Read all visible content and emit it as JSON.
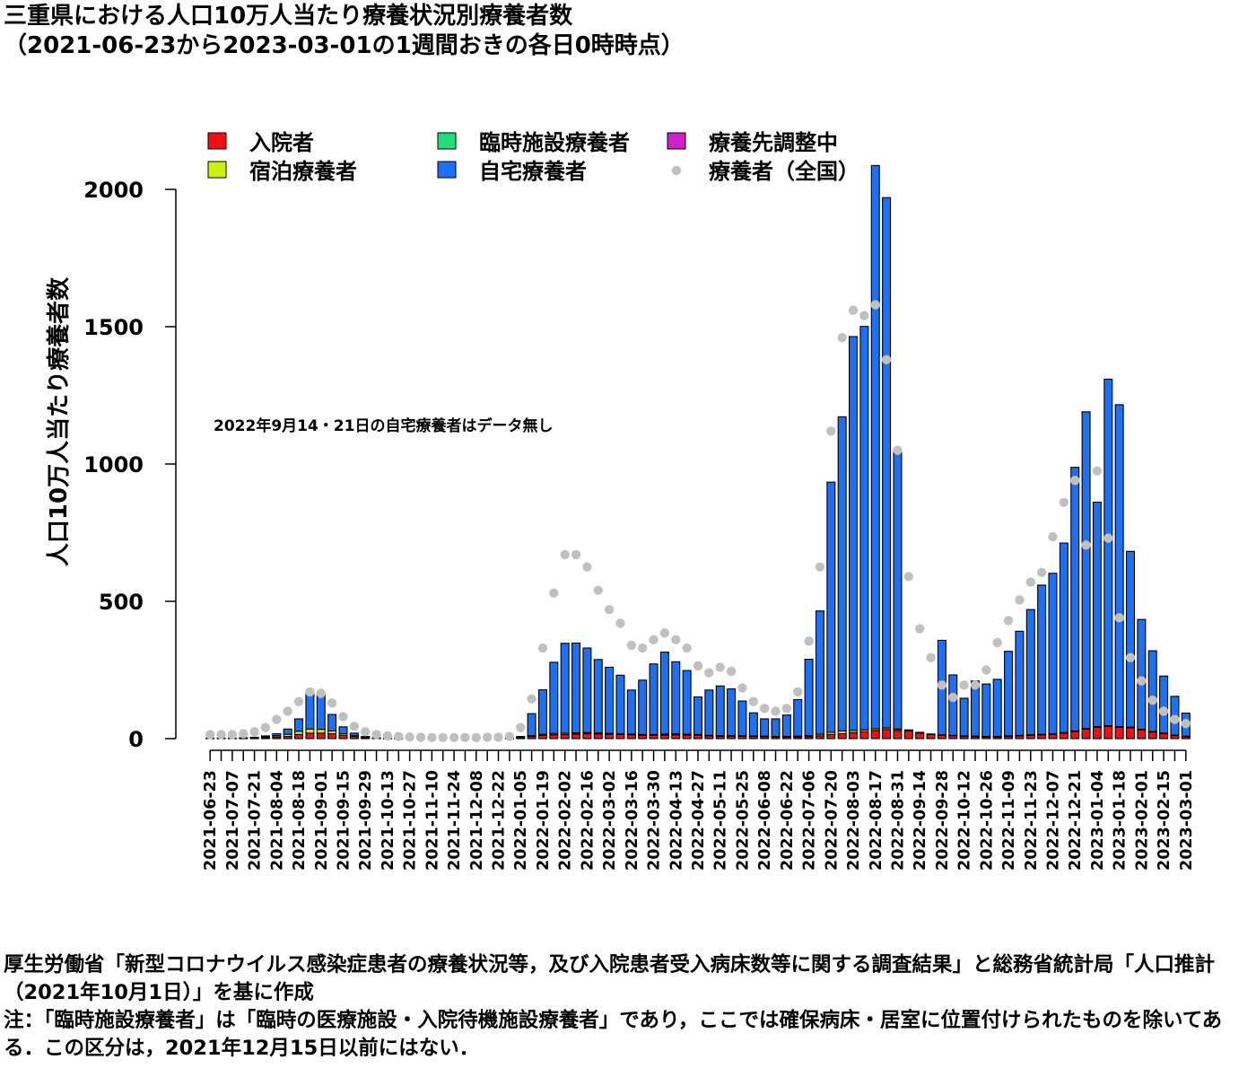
{
  "title_line1": "三重県における人口10万人当たり療養状況別療養者数",
  "title_line2": "（2021-06-23から2023-03-01の1週間おきの各日0時時点）",
  "annotation": "2022年9月14・21日の自宅療養者はデータ無し",
  "source_note": "厚生労働省「新型コロナウイルス感染症患者の療養状況等，及び入院患者受入病床数等に関する調査結果」と総務省統計局「人口推計（2021年10月1日）」を基に作成",
  "remark": "注：「臨時施設療養者」は「臨時の医療施設・入院待機施設療養者」であり，ここでは確保病床・居室に位置付けられたものを除いてある．この区分は，2021年12月15日以前にはない．",
  "colors": {
    "hospital": "#ee1111",
    "hotel": "#ccee11",
    "temporary": "#22dd77",
    "home": "#1f6ff2",
    "adjusting": "#cc22cc",
    "national": "#c0c0c0",
    "bar_outline": "#000000"
  },
  "chart_data": {
    "type": "bar",
    "stacked": true,
    "ylabel": "人口10万人当たり療養者数",
    "xlabel": "",
    "ylim": [
      0,
      2000
    ],
    "yticks": [
      0,
      500,
      1000,
      1500,
      2000
    ],
    "grid": false,
    "legend_position": "top",
    "x": [
      "2021-06-23",
      "2021-06-30",
      "2021-07-07",
      "2021-07-14",
      "2021-07-21",
      "2021-07-28",
      "2021-08-04",
      "2021-08-11",
      "2021-08-18",
      "2021-08-25",
      "2021-09-01",
      "2021-09-08",
      "2021-09-15",
      "2021-09-22",
      "2021-09-29",
      "2021-10-06",
      "2021-10-13",
      "2021-10-20",
      "2021-10-27",
      "2021-11-03",
      "2021-11-10",
      "2021-11-17",
      "2021-11-24",
      "2021-12-01",
      "2021-12-08",
      "2021-12-15",
      "2021-12-22",
      "2021-12-29",
      "2022-01-05",
      "2022-01-12",
      "2022-01-19",
      "2022-01-26",
      "2022-02-02",
      "2022-02-09",
      "2022-02-16",
      "2022-02-23",
      "2022-03-02",
      "2022-03-09",
      "2022-03-16",
      "2022-03-23",
      "2022-03-30",
      "2022-04-06",
      "2022-04-13",
      "2022-04-20",
      "2022-04-27",
      "2022-05-04",
      "2022-05-11",
      "2022-05-18",
      "2022-05-25",
      "2022-06-01",
      "2022-06-08",
      "2022-06-15",
      "2022-06-22",
      "2022-06-29",
      "2022-07-06",
      "2022-07-13",
      "2022-07-20",
      "2022-07-27",
      "2022-08-03",
      "2022-08-10",
      "2022-08-17",
      "2022-08-24",
      "2022-08-31",
      "2022-09-07",
      "2022-09-14",
      "2022-09-21",
      "2022-09-28",
      "2022-10-05",
      "2022-10-12",
      "2022-10-19",
      "2022-10-26",
      "2022-11-02",
      "2022-11-09",
      "2022-11-16",
      "2022-11-23",
      "2022-11-30",
      "2022-12-07",
      "2022-12-14",
      "2022-12-21",
      "2022-12-28",
      "2023-01-04",
      "2023-01-11",
      "2023-01-18",
      "2023-01-25",
      "2023-02-01",
      "2023-02-08",
      "2023-02-15",
      "2023-02-22",
      "2023-03-01"
    ],
    "x_tick_labels": [
      "2021-06-23",
      "2021-07-07",
      "2021-07-21",
      "2021-08-04",
      "2021-08-18",
      "2021-09-01",
      "2021-09-15",
      "2021-09-29",
      "2021-10-13",
      "2021-10-27",
      "2021-11-10",
      "2021-11-24",
      "2021-12-08",
      "2021-12-22",
      "2022-01-05",
      "2022-01-19",
      "2022-02-02",
      "2022-02-16",
      "2022-03-02",
      "2022-03-16",
      "2022-03-30",
      "2022-04-13",
      "2022-04-27",
      "2022-05-11",
      "2022-05-25",
      "2022-06-08",
      "2022-06-22",
      "2022-07-06",
      "2022-07-20",
      "2022-08-03",
      "2022-08-17",
      "2022-08-31",
      "2022-09-14",
      "2022-09-28",
      "2022-10-12",
      "2022-10-26",
      "2022-11-09",
      "2022-11-23",
      "2022-12-07",
      "2022-12-21",
      "2023-01-04",
      "2023-01-18",
      "2023-02-01",
      "2023-02-15",
      "2023-03-01"
    ],
    "series": [
      {
        "name": "入院者",
        "key": "hospital",
        "kind": "bar",
        "values": [
          2,
          2,
          2,
          2,
          3,
          4,
          6,
          8,
          15,
          20,
          20,
          18,
          12,
          8,
          4,
          2,
          1,
          1,
          0,
          0,
          0,
          0,
          0,
          0,
          0,
          0,
          0,
          1,
          3,
          8,
          12,
          14,
          15,
          17,
          18,
          17,
          16,
          15,
          14,
          12,
          12,
          13,
          14,
          13,
          12,
          10,
          9,
          9,
          9,
          8,
          7,
          6,
          6,
          6,
          7,
          10,
          15,
          18,
          22,
          25,
          30,
          33,
          30,
          28,
          20,
          15,
          12,
          10,
          8,
          7,
          6,
          6,
          8,
          10,
          12,
          14,
          16,
          20,
          26,
          35,
          42,
          45,
          42,
          40,
          32,
          24,
          18,
          12,
          8
        ]
      },
      {
        "name": "宿泊療養者",
        "key": "hotel",
        "kind": "bar",
        "values": [
          0,
          0,
          0,
          1,
          2,
          3,
          5,
          8,
          12,
          15,
          14,
          10,
          6,
          3,
          1,
          0,
          0,
          0,
          0,
          0,
          0,
          0,
          0,
          0,
          0,
          0,
          0,
          0,
          1,
          3,
          4,
          5,
          5,
          4,
          4,
          4,
          3,
          3,
          3,
          3,
          3,
          4,
          4,
          3,
          3,
          2,
          2,
          2,
          2,
          2,
          2,
          2,
          2,
          3,
          4,
          6,
          8,
          10,
          8,
          7,
          6,
          6,
          5,
          4,
          3,
          2,
          2,
          2,
          2,
          2,
          2,
          2,
          2,
          2,
          2,
          2,
          2,
          2,
          2,
          2,
          2,
          2,
          2,
          2,
          2,
          2,
          2,
          1,
          1
        ]
      },
      {
        "name": "臨時施設療養者",
        "key": "temporary",
        "kind": "bar",
        "values": [
          0,
          0,
          0,
          0,
          0,
          0,
          0,
          0,
          0,
          0,
          0,
          0,
          0,
          0,
          0,
          0,
          0,
          0,
          0,
          0,
          0,
          0,
          0,
          0,
          0,
          0,
          0,
          0,
          0,
          0,
          0,
          0,
          0,
          0,
          0,
          0,
          0,
          0,
          0,
          0,
          0,
          0,
          0,
          0,
          0,
          0,
          0,
          0,
          0,
          0,
          0,
          0,
          0,
          0,
          0,
          0,
          0,
          0,
          0,
          0,
          0,
          0,
          0,
          0,
          0,
          0,
          0,
          0,
          0,
          0,
          0,
          0,
          0,
          0,
          0,
          0,
          0,
          0,
          0,
          0,
          0,
          0,
          0,
          0,
          0,
          0,
          0,
          0,
          0
        ]
      },
      {
        "name": "自宅療養者",
        "key": "home",
        "kind": "bar",
        "values": [
          0,
          0,
          0,
          0,
          0,
          3,
          7,
          19,
          45,
          128,
          130,
          60,
          25,
          9,
          3,
          1,
          0,
          0,
          0,
          0,
          0,
          0,
          0,
          0,
          0,
          0,
          0,
          1,
          4,
          80,
          162,
          259,
          327,
          327,
          308,
          267,
          241,
          213,
          160,
          198,
          257,
          298,
          262,
          232,
          137,
          165,
          181,
          170,
          126,
          84,
          63,
          64,
          78,
          133,
          278,
          449,
          911,
          1144,
          1434,
          1469,
          2051,
          1931,
          1013,
          0,
          0,
          0,
          344,
          220,
          137,
          201,
          191,
          208,
          308,
          379,
          456,
          543,
          584,
          690,
          960,
          1153,
          817,
          1262,
          1172,
          640,
          400,
          294,
          208,
          141,
          84
        ]
      },
      {
        "name": "療養先調整中",
        "key": "adjusting",
        "kind": "bar",
        "values": [
          0,
          0,
          0,
          0,
          0,
          0,
          0,
          0,
          0,
          0,
          0,
          0,
          0,
          0,
          0,
          0,
          0,
          0,
          0,
          0,
          0,
          0,
          0,
          0,
          0,
          0,
          0,
          0,
          0,
          0,
          0,
          0,
          0,
          0,
          0,
          0,
          0,
          0,
          0,
          0,
          0,
          0,
          0,
          0,
          0,
          0,
          0,
          0,
          0,
          0,
          0,
          0,
          0,
          0,
          0,
          0,
          0,
          0,
          0,
          0,
          0,
          0,
          0,
          0,
          0,
          0,
          0,
          0,
          0,
          0,
          0,
          0,
          0,
          0,
          0,
          0,
          0,
          0,
          0,
          0,
          0,
          0,
          0,
          0,
          0,
          0,
          0,
          0,
          0
        ]
      },
      {
        "name": "療養者（全国）",
        "key": "national",
        "kind": "point",
        "values": [
          15,
          15,
          15,
          18,
          25,
          40,
          70,
          100,
          135,
          170,
          165,
          130,
          80,
          45,
          25,
          15,
          10,
          8,
          6,
          5,
          4,
          4,
          4,
          4,
          4,
          5,
          5,
          8,
          40,
          145,
          330,
          530,
          670,
          670,
          625,
          540,
          470,
          420,
          340,
          330,
          360,
          385,
          360,
          330,
          265,
          240,
          260,
          245,
          185,
          135,
          110,
          100,
          110,
          170,
          355,
          625,
          1120,
          1460,
          1560,
          1540,
          1580,
          1380,
          1050,
          590,
          400,
          295,
          195,
          150,
          195,
          195,
          250,
          350,
          430,
          505,
          570,
          605,
          735,
          860,
          940,
          705,
          975,
          730,
          440,
          295,
          210,
          140,
          100,
          70,
          55
        ]
      }
    ]
  }
}
